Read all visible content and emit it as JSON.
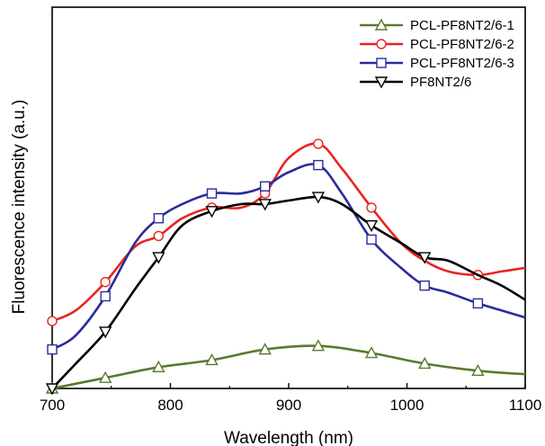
{
  "chart_data": {
    "type": "line",
    "xlabel": "Wavelength (nm)",
    "ylabel": "Fluorescence intensity (a.u.)",
    "xlim": [
      700,
      1100
    ],
    "ylim": [
      0,
      1
    ],
    "x_ticks": [
      700,
      800,
      900,
      1000,
      1100
    ],
    "y_ticks_shown": false,
    "grid": false,
    "legend_position": "top-right",
    "series": [
      {
        "name": "PCL-PF8NT2/6-1",
        "color": "#5a7a2e",
        "marker": "triangle-up",
        "x": [
          700,
          745,
          790,
          835,
          880,
          925,
          970,
          1015,
          1060,
          1100
        ],
        "y": [
          0.0,
          0.03,
          0.06,
          0.08,
          0.11,
          0.12,
          0.1,
          0.07,
          0.05,
          0.04
        ],
        "marker_x": [
          700,
          745,
          790,
          835,
          880,
          925,
          970,
          1015,
          1060
        ]
      },
      {
        "name": "PCL-PF8NT2/6-2",
        "color": "#e8251f",
        "marker": "circle",
        "x": [
          700,
          720,
          745,
          770,
          790,
          810,
          835,
          860,
          880,
          900,
          925,
          945,
          970,
          995,
          1015,
          1035,
          1060,
          1080,
          1100
        ],
        "y": [
          0.19,
          0.22,
          0.3,
          0.4,
          0.43,
          0.48,
          0.51,
          0.51,
          0.55,
          0.65,
          0.69,
          0.62,
          0.51,
          0.41,
          0.36,
          0.33,
          0.32,
          0.33,
          0.34
        ],
        "marker_x": [
          700,
          745,
          790,
          835,
          880,
          925,
          970,
          1060
        ]
      },
      {
        "name": "PCL-PF8NT2/6-3",
        "color": "#2b2b9b",
        "marker": "square",
        "x": [
          700,
          720,
          745,
          770,
          790,
          810,
          835,
          860,
          880,
          900,
          925,
          945,
          970,
          995,
          1015,
          1035,
          1060,
          1080,
          1100
        ],
        "y": [
          0.11,
          0.15,
          0.26,
          0.41,
          0.48,
          0.52,
          0.55,
          0.55,
          0.57,
          0.61,
          0.63,
          0.55,
          0.42,
          0.34,
          0.29,
          0.27,
          0.24,
          0.22,
          0.2
        ],
        "marker_x": [
          700,
          745,
          790,
          835,
          880,
          925,
          970,
          1015,
          1060
        ]
      },
      {
        "name": "PF8NT2/6",
        "color": "#000000",
        "marker": "triangle-down",
        "x": [
          700,
          720,
          745,
          770,
          790,
          810,
          835,
          860,
          880,
          900,
          925,
          945,
          970,
          995,
          1015,
          1035,
          1060,
          1080,
          1100
        ],
        "y": [
          0.0,
          0.07,
          0.16,
          0.28,
          0.37,
          0.46,
          0.5,
          0.52,
          0.52,
          0.53,
          0.54,
          0.52,
          0.46,
          0.41,
          0.37,
          0.36,
          0.32,
          0.29,
          0.25
        ],
        "marker_x": [
          700,
          745,
          790,
          835,
          880,
          925,
          970,
          1015
        ]
      }
    ]
  }
}
